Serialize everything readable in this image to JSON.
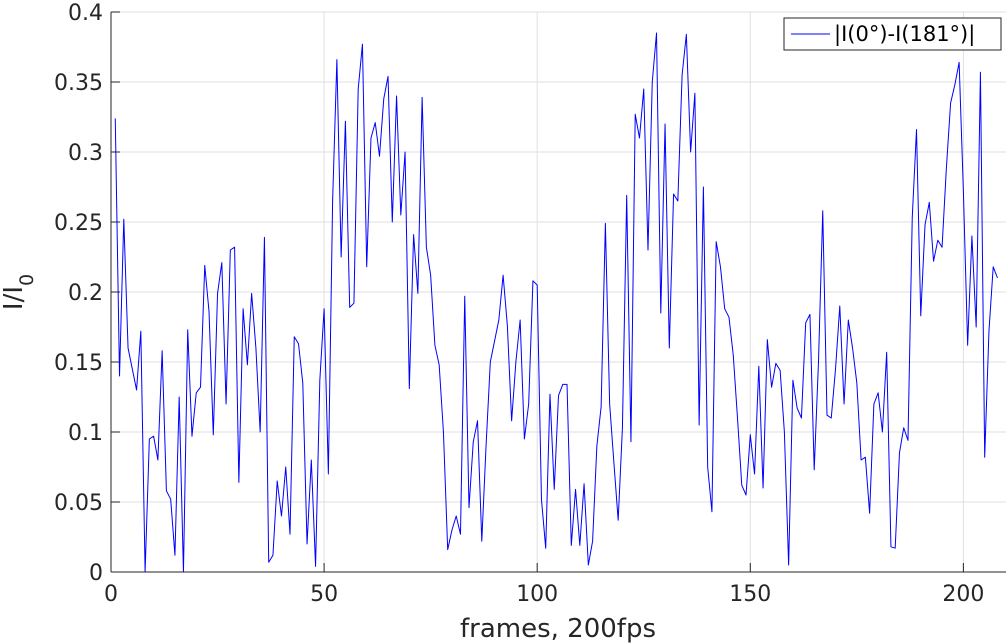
{
  "chart_data": {
    "type": "line",
    "title": "",
    "xlabel": "frames, 200fps",
    "ylabel": "I/I0",
    "ylabel_main": "I/I",
    "ylabel_sub": "0",
    "xlim": [
      0,
      210
    ],
    "ylim": [
      0,
      0.4
    ],
    "xticks": [
      0,
      50,
      100,
      150,
      200
    ],
    "xtick_labels": [
      "0",
      "50",
      "100",
      "150",
      "200"
    ],
    "yticks": [
      0,
      0.05,
      0.1,
      0.15,
      0.2,
      0.25,
      0.3,
      0.35,
      0.4
    ],
    "ytick_labels": [
      "0",
      "0.05",
      "0.1",
      "0.15",
      "0.2",
      "0.25",
      "0.3",
      "0.35",
      "0.4"
    ],
    "grid": true,
    "legend_position": "top-right",
    "series": [
      {
        "name": "|I(0°)-I(181°)|",
        "color": "#0000ff",
        "x_start": 1,
        "x_step": 1,
        "values": [
          0.324,
          0.14,
          0.252,
          0.16,
          0.145,
          0.13,
          0.172,
          0.0,
          0.095,
          0.097,
          0.08,
          0.158,
          0.058,
          0.052,
          0.012,
          0.125,
          0.0,
          0.173,
          0.097,
          0.128,
          0.132,
          0.219,
          0.186,
          0.098,
          0.199,
          0.221,
          0.12,
          0.23,
          0.232,
          0.064,
          0.188,
          0.148,
          0.199,
          0.16,
          0.1,
          0.239,
          0.007,
          0.012,
          0.065,
          0.04,
          0.075,
          0.027,
          0.168,
          0.163,
          0.135,
          0.02,
          0.08,
          0.004,
          0.137,
          0.188,
          0.07,
          0.265,
          0.366,
          0.225,
          0.322,
          0.189,
          0.192,
          0.345,
          0.377,
          0.218,
          0.31,
          0.321,
          0.297,
          0.338,
          0.354,
          0.25,
          0.34,
          0.255,
          0.3,
          0.131,
          0.241,
          0.199,
          0.339,
          0.232,
          0.212,
          0.162,
          0.148,
          0.1,
          0.016,
          0.03,
          0.04,
          0.027,
          0.197,
          0.046,
          0.093,
          0.108,
          0.022,
          0.09,
          0.15,
          0.165,
          0.18,
          0.212,
          0.176,
          0.108,
          0.15,
          0.18,
          0.095,
          0.12,
          0.208,
          0.205,
          0.052,
          0.017,
          0.127,
          0.059,
          0.126,
          0.134,
          0.134,
          0.019,
          0.059,
          0.019,
          0.063,
          0.005,
          0.022,
          0.09,
          0.118,
          0.249,
          0.12,
          0.078,
          0.037,
          0.103,
          0.269,
          0.093,
          0.327,
          0.31,
          0.345,
          0.23,
          0.35,
          0.385,
          0.185,
          0.32,
          0.16,
          0.27,
          0.265,
          0.355,
          0.384,
          0.3,
          0.342,
          0.105,
          0.275,
          0.075,
          0.043,
          0.236,
          0.218,
          0.188,
          0.182,
          0.155,
          0.11,
          0.062,
          0.055,
          0.098,
          0.07,
          0.147,
          0.06,
          0.166,
          0.132,
          0.149,
          0.144,
          0.1,
          0.005,
          0.137,
          0.117,
          0.11,
          0.178,
          0.184,
          0.073,
          0.15,
          0.258,
          0.112,
          0.11,
          0.145,
          0.19,
          0.12,
          0.18,
          0.16,
          0.135,
          0.08,
          0.082,
          0.042,
          0.12,
          0.128,
          0.1,
          0.157,
          0.018,
          0.017,
          0.085,
          0.103,
          0.094,
          0.253,
          0.316,
          0.183,
          0.248,
          0.264,
          0.222,
          0.237,
          0.232,
          0.288,
          0.335,
          0.348,
          0.364,
          0.272,
          0.162,
          0.24,
          0.175,
          0.357,
          0.082,
          0.172,
          0.218,
          0.21
        ]
      }
    ]
  }
}
